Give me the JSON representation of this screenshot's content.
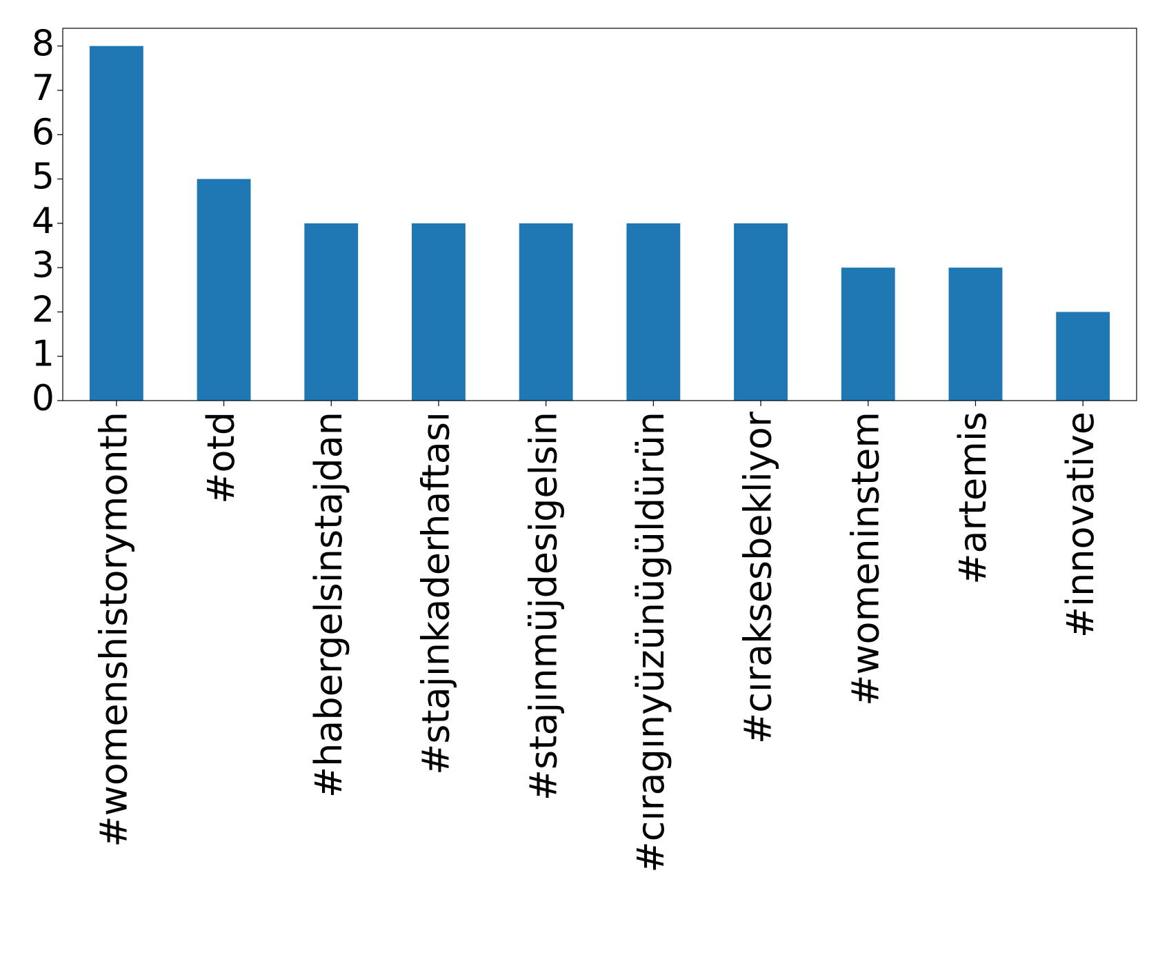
{
  "chart_data": {
    "type": "bar",
    "categories": [
      "#womenshistorymonth",
      "#otd",
      "#habergelsinstajdan",
      "#stajınkaderhaftası",
      "#stajınmüjdesigelsin",
      "#cıragınyüzünügüldürün",
      "#cıraksesbekliyor",
      "#womeninstem",
      "#artemis",
      "#innovative"
    ],
    "values": [
      8,
      5,
      4,
      4,
      4,
      4,
      4,
      3,
      3,
      2
    ],
    "color": "#1f77b4",
    "ylim": [
      0,
      8.4
    ],
    "yticks": [
      0,
      1,
      2,
      3,
      4,
      5,
      6,
      7,
      8
    ],
    "grid": false
  }
}
